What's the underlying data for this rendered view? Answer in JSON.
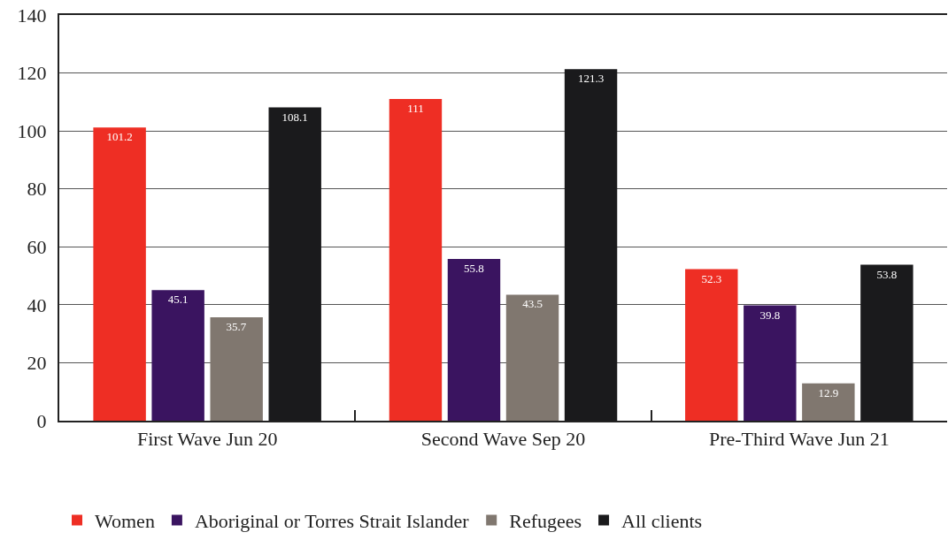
{
  "chart_data": {
    "type": "bar",
    "categories": [
      "First Wave Jun 20",
      "Second Wave Sep 20",
      "Pre-Third Wave Jun 21"
    ],
    "series": [
      {
        "name": "Women",
        "color": "#ee2e24",
        "values": [
          101.2,
          111,
          52.3
        ]
      },
      {
        "name": "Aboriginal or Torres Strait Islander",
        "color": "#3a1460",
        "values": [
          45.1,
          55.8,
          39.8
        ]
      },
      {
        "name": "Refugees",
        "color": "#80776f",
        "values": [
          35.7,
          43.5,
          12.9
        ]
      },
      {
        "name": "All clients",
        "color": "#1a1a1c",
        "values": [
          108.1,
          121.3,
          53.8
        ]
      }
    ],
    "ylim": [
      0,
      140
    ],
    "yticks": [
      0,
      20,
      40,
      60,
      80,
      100,
      120,
      140
    ],
    "grid": "y",
    "legend": "bottom",
    "data_labels": true
  }
}
